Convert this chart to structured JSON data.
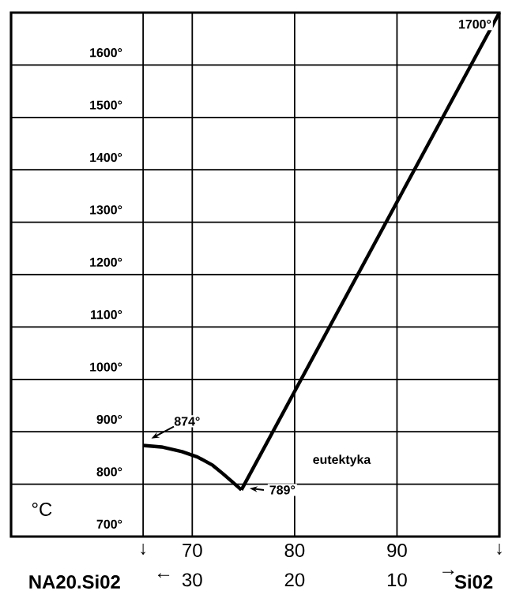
{
  "chart_data": {
    "type": "line",
    "ylabel": "°C",
    "xlim": [
      52.3,
      100
    ],
    "ylim": [
      700,
      1700
    ],
    "xticks": [
      {
        "value": 65.2,
        "label": "↓"
      },
      70,
      80,
      90,
      {
        "value": 100,
        "label": "↓"
      }
    ],
    "yticks": [
      {
        "value": 700,
        "label": "700°"
      },
      {
        "value": 800,
        "label": "800°"
      },
      {
        "value": 900,
        "label": "900°"
      },
      {
        "value": 1000,
        "label": "1000°"
      },
      {
        "value": 1100,
        "label": "1100°"
      },
      {
        "value": 1200,
        "label": "1200°"
      },
      {
        "value": 1300,
        "label": "1300°"
      },
      {
        "value": 1400,
        "label": "1400°"
      },
      {
        "value": 1500,
        "label": "1500°"
      },
      {
        "value": 1600,
        "label": "1600°"
      }
    ],
    "grid": true,
    "marker": "none",
    "line_style": "solid",
    "series": [
      {
        "color": "#000000",
        "x": [
          65.2,
          67,
          69,
          70.5,
          72,
          73,
          74,
          74.8
        ],
        "values": [
          874,
          871,
          862,
          852,
          836,
          820,
          803,
          789
        ]
      },
      {
        "color": "#000000",
        "x": [
          74.8,
          100
        ],
        "values": [
          789,
          1700
        ]
      }
    ],
    "annotations": [
      "874°",
      "789°",
      "eutektyka",
      "1700°",
      "←",
      "30",
      "20",
      "10",
      "→",
      "NA20.Si02",
      "Si02"
    ]
  }
}
